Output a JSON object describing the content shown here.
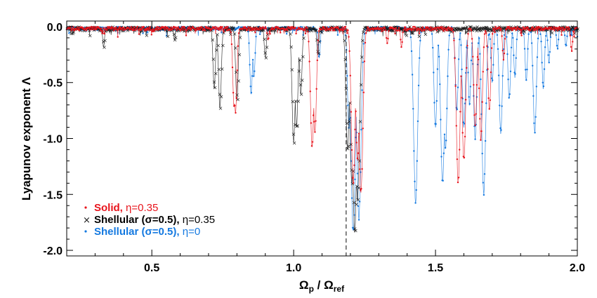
{
  "chart_data": {
    "type": "line",
    "title": "",
    "xlabel": {
      "base": "Ω",
      "sub1": "p",
      "sep": " / ",
      "base2": "Ω",
      "sub2": "ref"
    },
    "ylabel": "Lyapunov exponent Λ",
    "xlim": [
      0.2,
      2.0
    ],
    "ylim": [
      -2.05,
      0.05
    ],
    "xticks": [
      0.5,
      1.0,
      1.5,
      2.0
    ],
    "xtick_labels": [
      "0.5",
      "1.0",
      "1.5",
      "2.0"
    ],
    "yticks": [
      0.0,
      -0.5,
      -1.0,
      -1.5,
      -2.0
    ],
    "ytick_labels": [
      "0.0",
      "-0.5",
      "-1.0",
      "-1.5",
      "-2.0"
    ],
    "reference_line": {
      "x": 1.185,
      "style": "dashed"
    },
    "legend": {
      "placement": "bottom-left"
    },
    "series": [
      {
        "name": "Solid",
        "label_prefix": "Solid, ",
        "label_suffix": "η=0.35",
        "color": "#e8141c",
        "marker": "dot",
        "dips": [
          [
            0.79,
            -0.72
          ],
          [
            0.795,
            -0.78
          ],
          [
            0.91,
            -0.12
          ],
          [
            1.065,
            -1.08
          ],
          [
            1.075,
            -0.95
          ],
          [
            1.21,
            -1.4
          ],
          [
            1.225,
            -1.2
          ],
          [
            1.237,
            -1.5
          ],
          [
            1.33,
            -0.15
          ],
          [
            1.38,
            -0.18
          ],
          [
            1.58,
            -1.38
          ],
          [
            1.6,
            -1.2
          ],
          [
            1.64,
            -0.9
          ],
          [
            1.66,
            -1.0
          ],
          [
            1.69,
            -0.75
          ],
          [
            1.74,
            -0.3
          ],
          [
            1.98,
            -0.22
          ]
        ]
      },
      {
        "name": "Shellular (σ=0.5), η=0.35",
        "label_prefix": "Shellular (σ=0.5), ",
        "label_suffix": "η=0.35",
        "color": "#1a1a1a",
        "marker": "star",
        "dips": [
          [
            0.22,
            -0.06
          ],
          [
            0.33,
            -0.18
          ],
          [
            0.58,
            -0.12
          ],
          [
            0.72,
            -0.55
          ],
          [
            0.74,
            -0.72
          ],
          [
            0.8,
            -0.65
          ],
          [
            0.9,
            -0.28
          ],
          [
            1.0,
            -1.03
          ],
          [
            1.01,
            -0.9
          ],
          [
            1.025,
            -0.6
          ],
          [
            1.085,
            -0.25
          ],
          [
            1.19,
            -1.1
          ],
          [
            1.205,
            -1.4
          ],
          [
            1.215,
            -1.82
          ],
          [
            1.225,
            -1.55
          ]
        ]
      },
      {
        "name": "Shellular (σ=0.5), η=0",
        "label_prefix": "Shellular (σ=0.5), ",
        "label_suffix": "η=0",
        "color": "#1479e0",
        "marker": "dot",
        "dips": [
          [
            0.85,
            -0.6
          ],
          [
            0.86,
            -0.45
          ],
          [
            1.09,
            -0.28
          ],
          [
            1.195,
            -0.9
          ],
          [
            1.21,
            -1.85
          ],
          [
            1.23,
            -1.7
          ],
          [
            1.43,
            -1.55
          ],
          [
            1.5,
            -0.9
          ],
          [
            1.525,
            -1.4
          ],
          [
            1.535,
            -1.1
          ],
          [
            1.575,
            -0.75
          ],
          [
            1.6,
            -0.9
          ],
          [
            1.62,
            -0.7
          ],
          [
            1.64,
            -1.0
          ],
          [
            1.67,
            -1.48
          ],
          [
            1.7,
            -0.5
          ],
          [
            1.73,
            -0.95
          ],
          [
            1.76,
            -0.65
          ],
          [
            1.78,
            -0.45
          ],
          [
            1.82,
            -0.48
          ],
          [
            1.85,
            -0.95
          ],
          [
            1.88,
            -0.55
          ],
          [
            1.9,
            -0.32
          ],
          [
            1.93,
            -0.2
          ],
          [
            1.96,
            -0.18
          ]
        ]
      }
    ]
  }
}
